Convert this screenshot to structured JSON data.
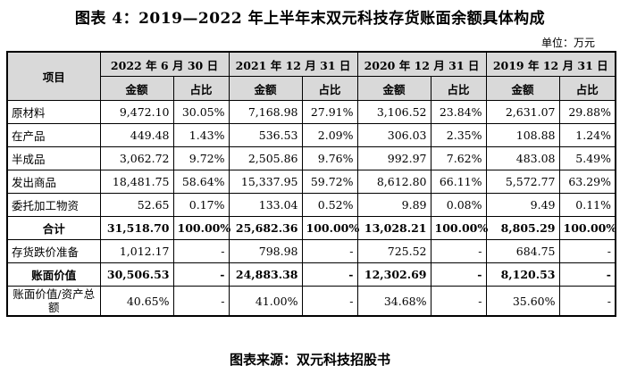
{
  "title": "图表 4：2019—2022 年上半年末双元科技存货账面余额具体构成",
  "unit": "单位：万元",
  "source": "图表来源：双元科技招股书",
  "header": {
    "item": "项目",
    "periods": [
      "2022 年 6 月 30 日",
      "2021 年 12 月 31 日",
      "2020 年 12 月 31 日",
      "2019 年 12 月 31 日"
    ],
    "amount": "金额",
    "ratio": "占比"
  },
  "rows": [
    {
      "label": "原材料",
      "cells": [
        "9,472.10",
        "30.05%",
        "7,168.98",
        "27.91%",
        "3,106.52",
        "23.84%",
        "2,631.07",
        "29.88%"
      ]
    },
    {
      "label": "在产品",
      "cells": [
        "449.48",
        "1.43%",
        "536.53",
        "2.09%",
        "306.03",
        "2.35%",
        "108.88",
        "1.24%"
      ]
    },
    {
      "label": "半成品",
      "cells": [
        "3,062.72",
        "9.72%",
        "2,505.86",
        "9.76%",
        "992.97",
        "7.62%",
        "483.08",
        "5.49%"
      ]
    },
    {
      "label": "发出商品",
      "cells": [
        "18,481.75",
        "58.64%",
        "15,337.95",
        "59.72%",
        "8,612.80",
        "66.11%",
        "5,572.77",
        "63.29%"
      ]
    },
    {
      "label": "委托加工物资",
      "cells": [
        "52.65",
        "0.17%",
        "133.04",
        "0.52%",
        "9.89",
        "0.08%",
        "9.49",
        "0.11%"
      ]
    },
    {
      "label": "合计",
      "cells": [
        "31,518.70",
        "100.00%",
        "25,682.36",
        "100.00%",
        "13,028.21",
        "100.00%",
        "8,805.29",
        "100.00%"
      ]
    },
    {
      "label": "存货跌价准备",
      "cells": [
        "1,012.17",
        "-",
        "798.98",
        "-",
        "725.52",
        "-",
        "684.75",
        "-"
      ]
    },
    {
      "label": "账面价值",
      "cells": [
        "30,506.53",
        "-",
        "24,883.38",
        "-",
        "12,302.69",
        "-",
        "8,120.53",
        "-"
      ]
    },
    {
      "label": "账面价值/资产总额",
      "cells": [
        "40.65%",
        "-",
        "41.00%",
        "-",
        "34.68%",
        "-",
        "35.60%",
        "-"
      ]
    }
  ]
}
